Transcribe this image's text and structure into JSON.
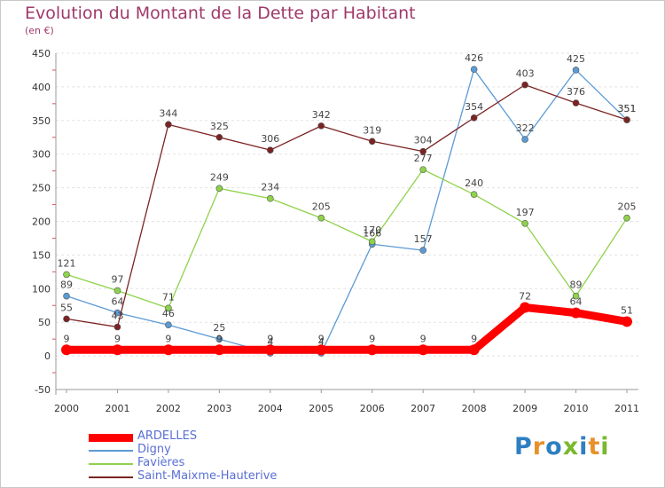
{
  "title": "Evolution du Montant de la Dette par Habitant",
  "unit_label": "(en €)",
  "logo": {
    "text": "Proxiti",
    "letters": [
      {
        "ch": "P",
        "color": "#2d7fc1"
      },
      {
        "ch": "r",
        "color": "#e8902a"
      },
      {
        "ch": "o",
        "color": "#2d7fc1"
      },
      {
        "ch": "x",
        "color": "#7ab830"
      },
      {
        "ch": "i",
        "color": "#2d7fc1"
      },
      {
        "ch": "t",
        "color": "#e8902a"
      },
      {
        "ch": "i",
        "color": "#7ab830"
      }
    ]
  },
  "chart_data": {
    "type": "line",
    "title": "Evolution du Montant de la Dette par Habitant",
    "ylabel": "(en €)",
    "xlabel": "",
    "x": [
      "2000",
      "2001",
      "2002",
      "2003",
      "2004",
      "2005",
      "2006",
      "2007",
      "2008",
      "2009",
      "2010",
      "2011"
    ],
    "ylim": [
      -50,
      450
    ],
    "yticks": [
      "-50",
      "0",
      "50",
      "100",
      "150",
      "200",
      "250",
      "300",
      "350",
      "400",
      "450"
    ],
    "grid": "horizontal",
    "legend_position": "bottom-left",
    "series": [
      {
        "name": "ARDELLES",
        "color": "#ff0000",
        "width": 9,
        "values": [
          9,
          9,
          9,
          9,
          9,
          9,
          9,
          9,
          9,
          72,
          64,
          51
        ],
        "labels": [
          "9",
          "9",
          "9",
          "9",
          "9",
          "9",
          "9",
          "9",
          "9",
          "72",
          "64",
          "51"
        ]
      },
      {
        "name": "Digny",
        "color": "#5b9bd5",
        "width": 1.3,
        "values": [
          89,
          64,
          46,
          25,
          4,
          4,
          166,
          157,
          426,
          322,
          425,
          351
        ],
        "labels": [
          "89",
          "64",
          "46",
          "25",
          "4",
          "4",
          "166",
          "157",
          "426",
          "322",
          "425",
          "351"
        ]
      },
      {
        "name": "Favières",
        "color": "#8ed24a",
        "width": 1.3,
        "values": [
          121,
          97,
          71,
          249,
          234,
          205,
          170,
          277,
          240,
          197,
          89,
          205
        ],
        "labels": [
          "121",
          "97",
          "71",
          "249",
          "234",
          "205",
          "170",
          "277",
          "240",
          "197",
          "89",
          "205"
        ]
      },
      {
        "name": "Saint-Maixme-Hauterive",
        "color": "#7b2323",
        "width": 1.3,
        "values": [
          55,
          43,
          344,
          325,
          306,
          342,
          319,
          304,
          354,
          403,
          376,
          351
        ],
        "labels": [
          "55",
          "43",
          "344",
          "325",
          "306",
          "342",
          "319",
          "304",
          "354",
          "403",
          "376",
          "351"
        ]
      }
    ]
  }
}
